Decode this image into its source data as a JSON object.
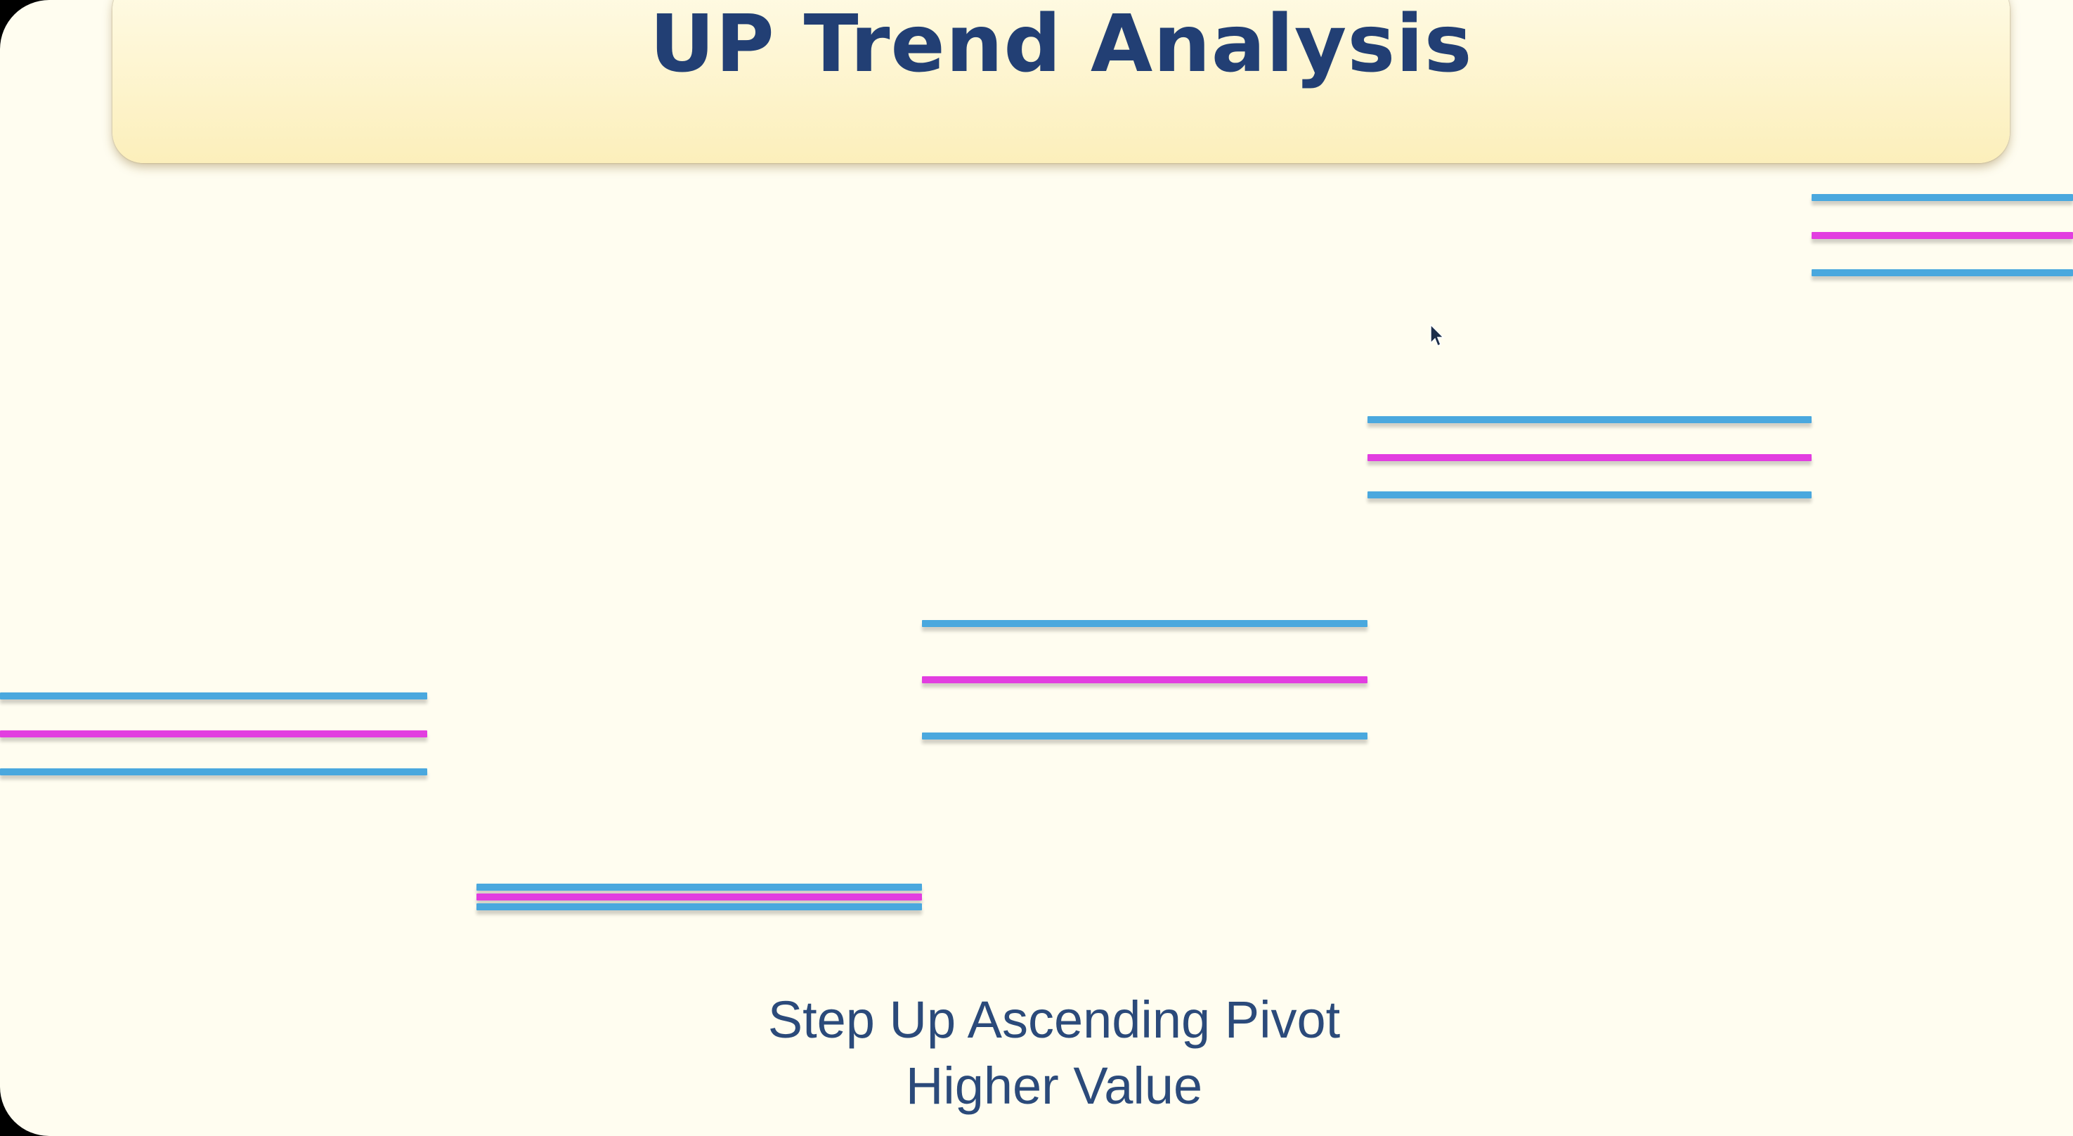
{
  "title": "UP Trend Analysis",
  "caption": {
    "line1": "Step Up Ascending Pivot",
    "line2": "Higher Value"
  },
  "colors": {
    "background": "#fffdf0",
    "banner": "#fcefbb",
    "title_text": "#223f74",
    "caption_text": "#2b4a7a",
    "band_line": "#4aa8de",
    "pivot_line": "#e23ee0"
  },
  "levels": [
    {
      "name": "level-1",
      "order": 1
    },
    {
      "name": "level-2",
      "order": 2
    },
    {
      "name": "level-3",
      "order": 3
    },
    {
      "name": "level-4",
      "order": 4
    },
    {
      "name": "level-5",
      "order": 5
    }
  ]
}
